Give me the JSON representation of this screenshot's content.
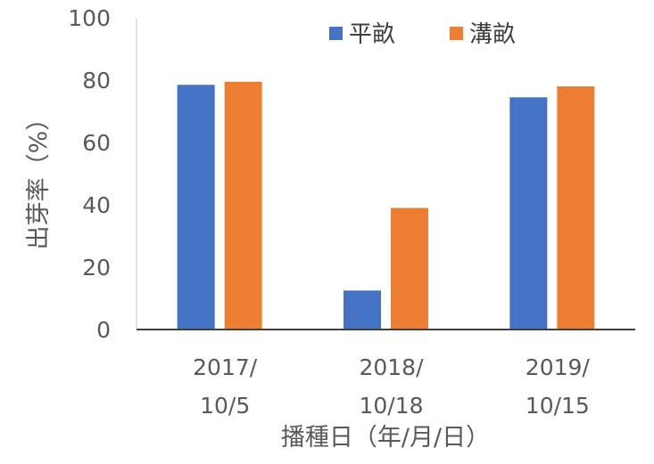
{
  "chart_data": {
    "type": "bar",
    "categories": [
      [
        "2017/",
        "10/5"
      ],
      [
        "2018/",
        "10/18"
      ],
      [
        "2019/",
        "10/15"
      ]
    ],
    "series": [
      {
        "name": "平畝",
        "color": "#4472C4",
        "values": [
          78.5,
          12.5,
          74.5
        ]
      },
      {
        "name": "溝畝",
        "color": "#ED7D31",
        "values": [
          79.5,
          39,
          78
        ]
      }
    ],
    "title": "",
    "xlabel": "播種日（年/月/日）",
    "ylabel": "出芽率（%）",
    "ylim": [
      0,
      100
    ],
    "yticks": [
      0,
      20,
      40,
      60,
      80,
      100
    ],
    "grid": false,
    "legend": "top"
  }
}
